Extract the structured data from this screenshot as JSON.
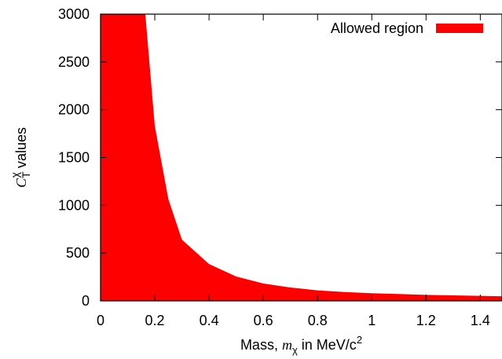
{
  "chart_data": {
    "type": "area",
    "title": "",
    "xlabel": {
      "prefix": "Mass, ",
      "symbol": "m",
      "subscript": "χ",
      "suffix": " in MeV/c",
      "superscript": "2"
    },
    "ylabel": {
      "symbol": "C",
      "subscript": "T",
      "superscript": "χ",
      "suffix": " values"
    },
    "xlim": [
      0,
      1.48
    ],
    "ylim": [
      0,
      3000
    ],
    "xticks": [
      0,
      0.2,
      0.4,
      0.6,
      0.8,
      1,
      1.2,
      1.4
    ],
    "xtick_labels": [
      "0",
      "0.2",
      "0.4",
      "0.6",
      "0.8",
      "1",
      "1.2",
      "1.4"
    ],
    "yticks": [
      0,
      500,
      1000,
      1500,
      2000,
      2500,
      3000
    ],
    "ytick_labels": [
      "0",
      "500",
      "1000",
      "1500",
      "2000",
      "2500",
      "3000"
    ],
    "grid": false,
    "legend_position": "top-right",
    "series": [
      {
        "name": "Allowed region",
        "color": "#ff0000",
        "fill_to": 0,
        "x": [
          0,
          0.165,
          0.2,
          0.25,
          0.3,
          0.4,
          0.5,
          0.6,
          0.7,
          0.8,
          0.9,
          1.0,
          1.1,
          1.2,
          1.3,
          1.4,
          1.48
        ],
        "y": [
          3000,
          3000,
          1830,
          1065,
          640,
          385,
          255,
          182,
          140,
          110,
          92,
          80,
          72,
          63,
          58,
          52,
          48
        ]
      }
    ]
  }
}
